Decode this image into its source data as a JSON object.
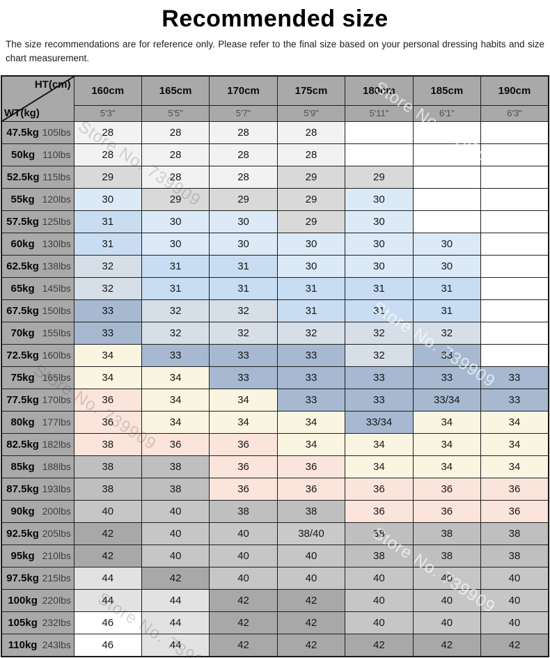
{
  "title": "Recommended size",
  "subtitle": "The size recommendations are for reference only. Please refer to the final size based on your personal dressing habits and size chart measurement.",
  "watermark": {
    "text": "Store No. 739909",
    "gray_color": "rgba(60,60,60,0.20)",
    "white_color": "rgba(255,255,255,0.65)"
  },
  "chart_data": {
    "type": "table",
    "title": "Recommended size",
    "corner": {
      "top_right": "HT(cm)",
      "bottom_left": "WT(kg)"
    },
    "header_bg": "#a9a9a9",
    "empty_bg": "#ffffff",
    "columns": [
      {
        "cm": "160cm",
        "ft": "5'3\""
      },
      {
        "cm": "165cm",
        "ft": "5'5\""
      },
      {
        "cm": "170cm",
        "ft": "5'7\""
      },
      {
        "cm": "175cm",
        "ft": "5'9\""
      },
      {
        "cm": "180cm",
        "ft": "5'11\""
      },
      {
        "cm": "185cm",
        "ft": "6'1\""
      },
      {
        "cm": "190cm",
        "ft": "6'3\""
      }
    ],
    "value_colors": {
      "28": "#f2f2f2",
      "29": "#d9d9d9",
      "30": "#dce9f7",
      "31": "#c8ddf2",
      "32": "#d6dee8",
      "33": "#a6b9d0",
      "33/34": "#a6b9d0",
      "34": "#faf5e1",
      "36": "#fbe4db",
      "38": "#bfbfbf",
      "38/40": "#c9c9c9",
      "40": "#c6c6c6",
      "42": "#a8a8a8",
      "44": "#e2e2e2",
      "46": "#ffffff",
      "": "#ffffff"
    },
    "cell_color_overrides": [
      {
        "row": 14,
        "col": 0,
        "color": "#fbe4db"
      }
    ],
    "rows": [
      {
        "kg": "47.5kg",
        "lbs": "105lbs",
        "values": [
          "28",
          "28",
          "28",
          "28",
          "",
          "",
          ""
        ]
      },
      {
        "kg": "50kg",
        "lbs": "110lbs",
        "values": [
          "28",
          "28",
          "28",
          "28",
          "",
          "",
          ""
        ]
      },
      {
        "kg": "52.5kg",
        "lbs": "115lbs",
        "values": [
          "29",
          "28",
          "28",
          "29",
          "29",
          "",
          ""
        ]
      },
      {
        "kg": "55kg",
        "lbs": "120lbs",
        "values": [
          "30",
          "29",
          "29",
          "29",
          "30",
          "",
          ""
        ]
      },
      {
        "kg": "57.5kg",
        "lbs": "125lbs",
        "values": [
          "31",
          "30",
          "30",
          "29",
          "30",
          "",
          ""
        ]
      },
      {
        "kg": "60kg",
        "lbs": "130lbs",
        "values": [
          "31",
          "30",
          "30",
          "30",
          "30",
          "30",
          ""
        ]
      },
      {
        "kg": "62.5kg",
        "lbs": "138lbs",
        "values": [
          "32",
          "31",
          "31",
          "30",
          "30",
          "30",
          ""
        ]
      },
      {
        "kg": "65kg",
        "lbs": "145lbs",
        "values": [
          "32",
          "31",
          "31",
          "31",
          "31",
          "31",
          ""
        ]
      },
      {
        "kg": "67.5kg",
        "lbs": "150lbs",
        "values": [
          "33",
          "32",
          "32",
          "31",
          "31",
          "31",
          ""
        ]
      },
      {
        "kg": "70kg",
        "lbs": "155lbs",
        "values": [
          "33",
          "32",
          "32",
          "32",
          "32",
          "32",
          ""
        ]
      },
      {
        "kg": "72.5kg",
        "lbs": "160lbs",
        "values": [
          "34",
          "33",
          "33",
          "33",
          "32",
          "33",
          ""
        ]
      },
      {
        "kg": "75kg",
        "lbs": "165lbs",
        "values": [
          "34",
          "34",
          "33",
          "33",
          "33",
          "33",
          "33"
        ]
      },
      {
        "kg": "77.5kg",
        "lbs": "170lbs",
        "values": [
          "36",
          "34",
          "34",
          "33",
          "33",
          "33/34",
          "33"
        ]
      },
      {
        "kg": "80kg",
        "lbs": "177lbs",
        "values": [
          "36",
          "34",
          "34",
          "34",
          "33/34",
          "34",
          "34"
        ]
      },
      {
        "kg": "82.5kg",
        "lbs": "182lbs",
        "values": [
          "38",
          "36",
          "36",
          "34",
          "34",
          "34",
          "34"
        ]
      },
      {
        "kg": "85kg",
        "lbs": "188lbs",
        "values": [
          "38",
          "38",
          "36",
          "36",
          "34",
          "34",
          "34"
        ]
      },
      {
        "kg": "87.5kg",
        "lbs": "193lbs",
        "values": [
          "38",
          "38",
          "36",
          "36",
          "36",
          "36",
          "36"
        ]
      },
      {
        "kg": "90kg",
        "lbs": "200lbs",
        "values": [
          "40",
          "40",
          "38",
          "38",
          "36",
          "36",
          "36"
        ]
      },
      {
        "kg": "92.5kg",
        "lbs": "205lbs",
        "values": [
          "42",
          "40",
          "40",
          "38/40",
          "38",
          "38",
          "38"
        ]
      },
      {
        "kg": "95kg",
        "lbs": "210lbs",
        "values": [
          "42",
          "40",
          "40",
          "40",
          "38",
          "38",
          "38"
        ]
      },
      {
        "kg": "97.5kg",
        "lbs": "215lbs",
        "values": [
          "44",
          "42",
          "40",
          "40",
          "40",
          "40",
          "40"
        ]
      },
      {
        "kg": "100kg",
        "lbs": "220lbs",
        "values": [
          "44",
          "44",
          "42",
          "42",
          "40",
          "40",
          "40"
        ]
      },
      {
        "kg": "105kg",
        "lbs": "232lbs",
        "values": [
          "46",
          "44",
          "42",
          "42",
          "40",
          "40",
          "40"
        ]
      },
      {
        "kg": "110kg",
        "lbs": "243lbs",
        "values": [
          "46",
          "44",
          "42",
          "42",
          "42",
          "42",
          "42"
        ]
      }
    ]
  }
}
